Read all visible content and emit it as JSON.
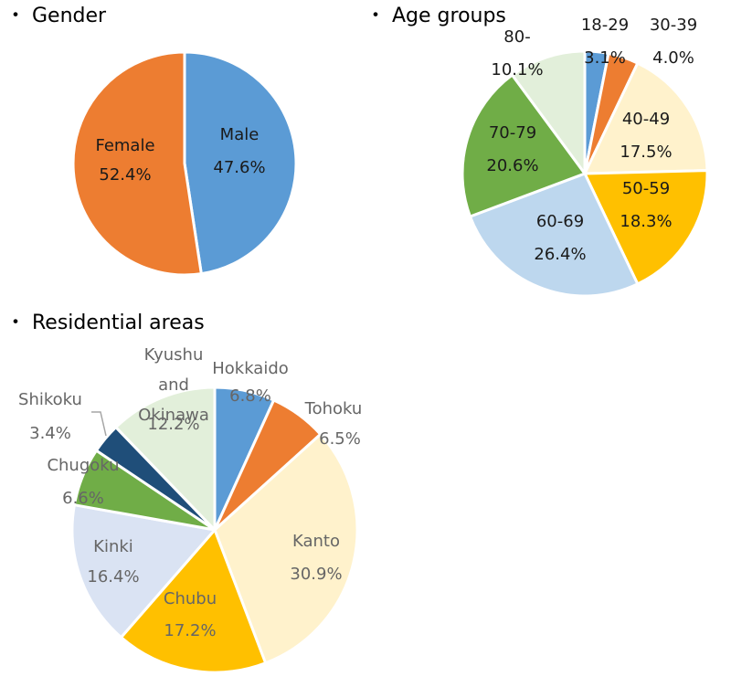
{
  "chart_data": [
    {
      "type": "pie",
      "title": "・ Gender",
      "categories": [
        "Male",
        "Female"
      ],
      "values": [
        47.6,
        52.4
      ],
      "value_labels": [
        "47.6%",
        "52.4%"
      ],
      "colors": [
        "#5B9BD5",
        "#ED7D31"
      ],
      "label_color": "dark"
    },
    {
      "type": "pie",
      "title": "・ Age groups",
      "categories": [
        "18-29",
        "30-39",
        "40-49",
        "50-59",
        "60-69",
        "70-79",
        "80-"
      ],
      "values": [
        3.1,
        4.0,
        17.5,
        18.3,
        26.4,
        20.6,
        10.1
      ],
      "value_labels": [
        "3.1%",
        "4.0%",
        "17.5%",
        "18.3%",
        "26.4%",
        "20.6%",
        "10.1%"
      ],
      "colors": [
        "#5B9BD5",
        "#ED7D31",
        "#FFF2CC",
        "#FFC000",
        "#BDD7EE",
        "#70AD47",
        "#E2EFDA"
      ],
      "label_color": "dark"
    },
    {
      "type": "pie",
      "title": "・ Residential areas",
      "categories": [
        "Hokkaido",
        "Tohoku",
        "Kanto",
        "Chubu",
        "Kinki",
        "Chugoku",
        "Shikoku",
        "Kyushu and Okinawa"
      ],
      "category_lines": [
        [
          "Hokkaido"
        ],
        [
          "Tohoku"
        ],
        [
          "Kanto"
        ],
        [
          "Chubu"
        ],
        [
          "Kinki"
        ],
        [
          "Chugoku"
        ],
        [
          "Shikoku"
        ],
        [
          "Kyushu",
          "and",
          "Okinawa"
        ]
      ],
      "values": [
        6.8,
        6.5,
        30.9,
        17.2,
        16.4,
        6.6,
        3.4,
        12.2
      ],
      "value_labels": [
        "6.8%",
        "6.5%",
        "30.9%",
        "17.2%",
        "16.4%",
        "6.6%",
        "3.4%",
        "12.2%"
      ],
      "colors": [
        "#5B9BD5",
        "#ED7D31",
        "#FFF2CC",
        "#FFC000",
        "#DAE3F3",
        "#70AD47",
        "#1F4E79",
        "#E2EFDA"
      ],
      "label_color": "grey"
    }
  ]
}
